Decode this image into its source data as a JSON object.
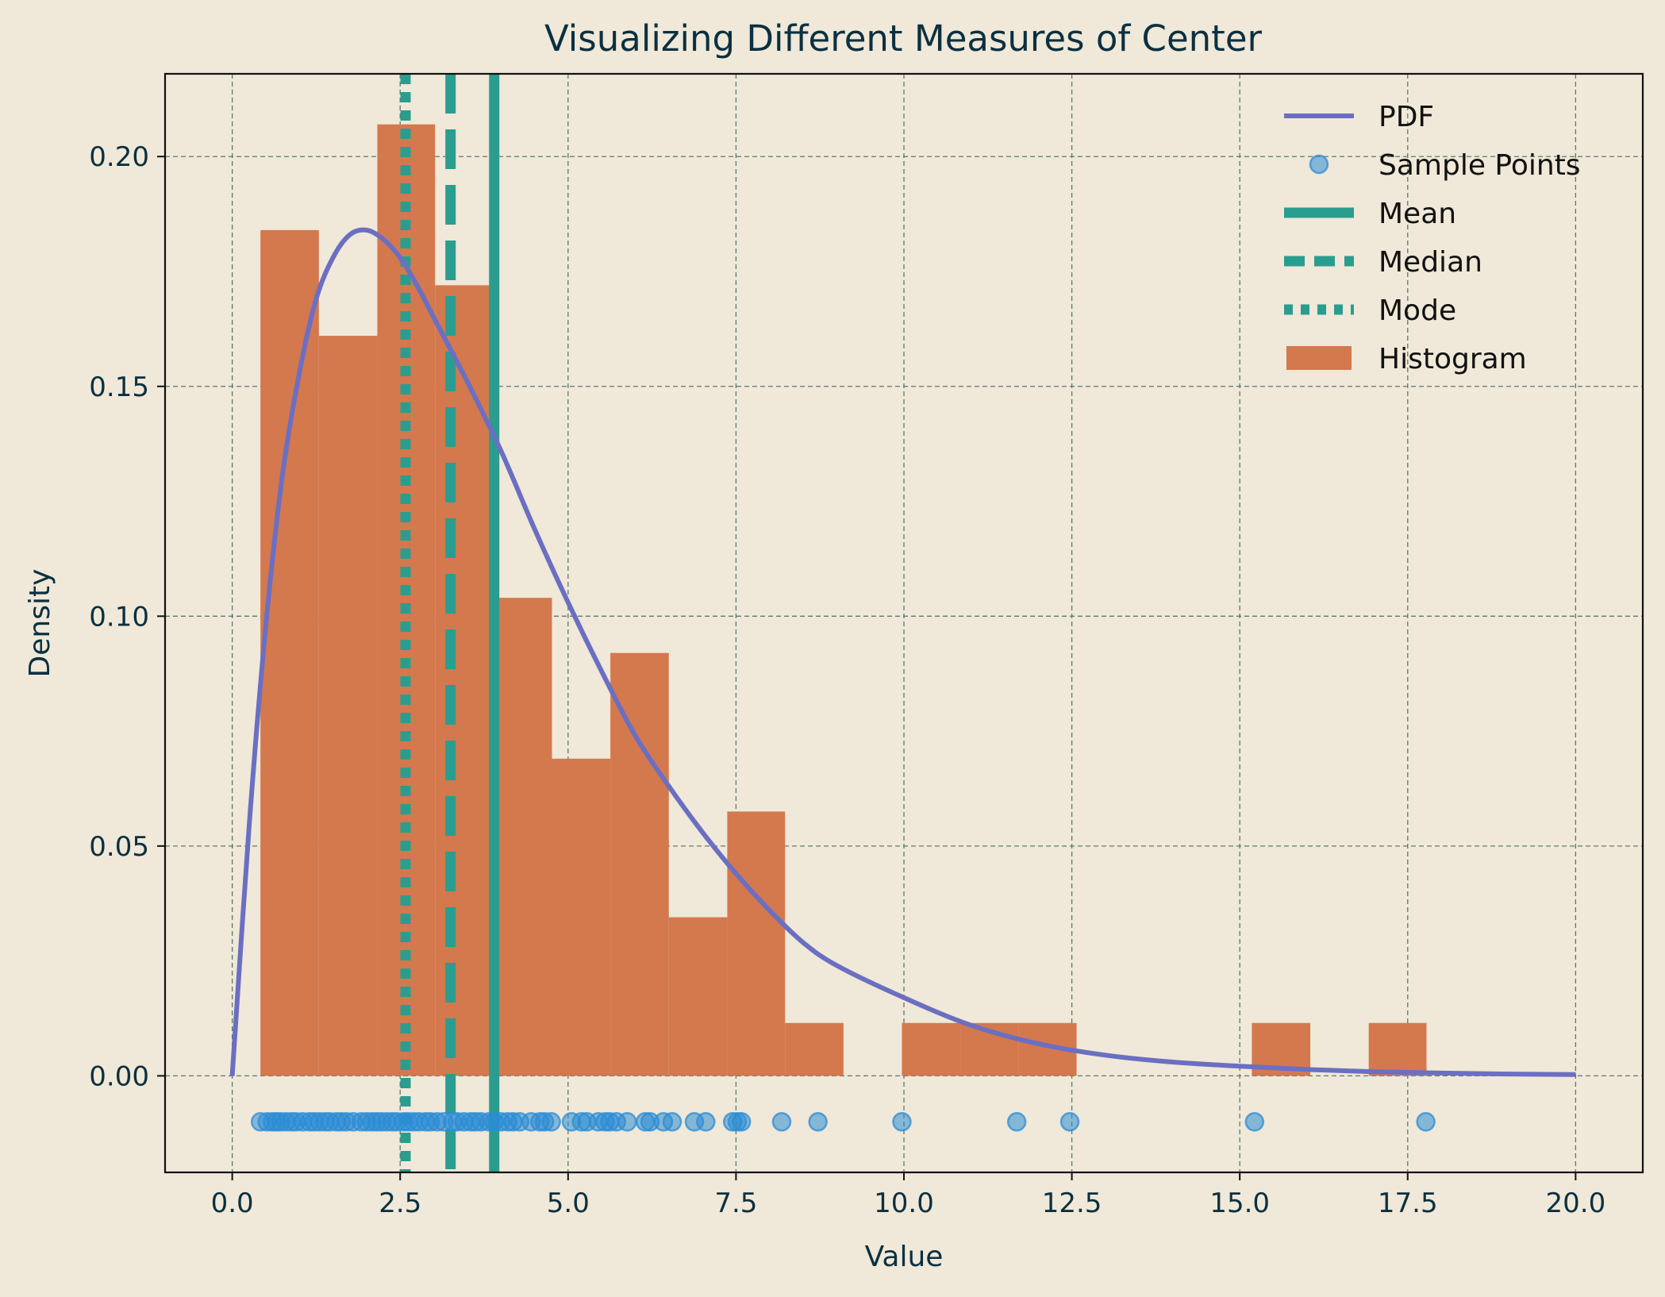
{
  "chart_data": {
    "type": "histogram",
    "title": "Visualizing Different Measures of Center",
    "xlabel": "Value",
    "ylabel": "Density",
    "xlim": [
      -1.0,
      21.0
    ],
    "ylim": [
      -0.021,
      0.218
    ],
    "xticks": [
      0.0,
      2.5,
      5.0,
      7.5,
      10.0,
      12.5,
      15.0,
      17.5,
      20.0
    ],
    "xtick_labels": [
      "0.0",
      "2.5",
      "5.0",
      "7.5",
      "10.0",
      "12.5",
      "15.0",
      "17.5",
      "20.0"
    ],
    "yticks": [
      0.0,
      0.05,
      0.1,
      0.15,
      0.2
    ],
    "ytick_labels": [
      "0.00",
      "0.05",
      "0.10",
      "0.15",
      "0.20"
    ],
    "grid": true,
    "legend_position": "top-right",
    "legend": [
      "PDF",
      "Sample Points",
      "Mean",
      "Median",
      "Mode",
      "Histogram"
    ],
    "histogram": {
      "name": "Histogram",
      "color": "#d4784e",
      "bins": [
        {
          "x0": 0.42,
          "x1": 1.29,
          "density": 0.184
        },
        {
          "x0": 1.29,
          "x1": 2.16,
          "density": 0.161
        },
        {
          "x0": 2.16,
          "x1": 3.02,
          "density": 0.207
        },
        {
          "x0": 3.02,
          "x1": 3.89,
          "density": 0.172
        },
        {
          "x0": 3.89,
          "x1": 4.76,
          "density": 0.104
        },
        {
          "x0": 4.76,
          "x1": 5.63,
          "density": 0.069
        },
        {
          "x0": 5.63,
          "x1": 6.5,
          "density": 0.092
        },
        {
          "x0": 6.5,
          "x1": 7.37,
          "density": 0.0345
        },
        {
          "x0": 7.37,
          "x1": 8.23,
          "density": 0.0575
        },
        {
          "x0": 8.23,
          "x1": 9.1,
          "density": 0.0115
        },
        {
          "x0": 9.1,
          "x1": 9.97,
          "density": 0.0
        },
        {
          "x0": 9.97,
          "x1": 10.84,
          "density": 0.0115
        },
        {
          "x0": 10.84,
          "x1": 11.71,
          "density": 0.0115
        },
        {
          "x0": 11.71,
          "x1": 12.57,
          "density": 0.0115
        },
        {
          "x0": 12.57,
          "x1": 13.44,
          "density": 0.0
        },
        {
          "x0": 13.44,
          "x1": 14.31,
          "density": 0.0
        },
        {
          "x0": 14.31,
          "x1": 15.18,
          "density": 0.0
        },
        {
          "x0": 15.18,
          "x1": 16.05,
          "density": 0.0115
        },
        {
          "x0": 16.05,
          "x1": 16.92,
          "density": 0.0
        },
        {
          "x0": 16.92,
          "x1": 17.78,
          "density": 0.0115
        }
      ]
    },
    "pdf": {
      "name": "PDF",
      "color": "#6b6fc2",
      "x": [
        0,
        0.25,
        0.5,
        0.75,
        1.0,
        1.25,
        1.5,
        1.75,
        2.0,
        2.25,
        2.5,
        2.75,
        3.0,
        3.5,
        4.0,
        4.5,
        5.0,
        5.5,
        6.0,
        6.5,
        7.0,
        7.5,
        8.0,
        8.5,
        9.0,
        10.0,
        11.0,
        12.0,
        13.0,
        14.0,
        15.0,
        16.0,
        17.0,
        18.0,
        19.0,
        20.0
      ],
      "y": [
        0.0,
        0.054,
        0.098,
        0.131,
        0.153,
        0.169,
        0.178,
        0.183,
        0.184,
        0.182,
        0.178,
        0.172,
        0.165,
        0.151,
        0.136,
        0.119,
        0.103,
        0.088,
        0.074,
        0.063,
        0.053,
        0.044,
        0.036,
        0.029,
        0.024,
        0.017,
        0.011,
        0.007,
        0.0045,
        0.003,
        0.0021,
        0.0014,
        0.0009,
        0.0006,
        0.0004,
        0.0003
      ]
    },
    "sample_points": {
      "name": "Sample Points",
      "color": "#2b8cd6",
      "y": -0.01,
      "x": [
        0.42,
        0.52,
        0.6,
        0.66,
        0.72,
        0.8,
        0.88,
        0.95,
        1.05,
        1.15,
        1.22,
        1.3,
        1.38,
        1.45,
        1.55,
        1.62,
        1.7,
        1.8,
        1.92,
        2.0,
        2.08,
        2.15,
        2.22,
        2.3,
        2.38,
        2.45,
        2.55,
        2.62,
        2.7,
        2.78,
        2.88,
        2.95,
        3.05,
        3.15,
        3.28,
        3.35,
        3.45,
        3.55,
        3.62,
        3.7,
        3.82,
        3.9,
        4.0,
        4.1,
        4.18,
        4.28,
        4.45,
        4.58,
        4.65,
        4.75,
        5.05,
        5.2,
        5.28,
        5.45,
        5.55,
        5.62,
        5.72,
        5.88,
        6.15,
        6.22,
        6.42,
        6.55,
        6.88,
        7.05,
        7.45,
        7.52,
        7.58,
        8.18,
        8.72,
        9.97,
        11.68,
        12.47,
        15.22,
        17.77
      ]
    },
    "mean": {
      "name": "Mean",
      "value": 3.9,
      "color": "#2a9d8f"
    },
    "median": {
      "name": "Median",
      "value": 3.25,
      "color": "#2a9d8f"
    },
    "mode": {
      "name": "Mode",
      "value": 2.58,
      "color": "#2a9d8f"
    }
  }
}
